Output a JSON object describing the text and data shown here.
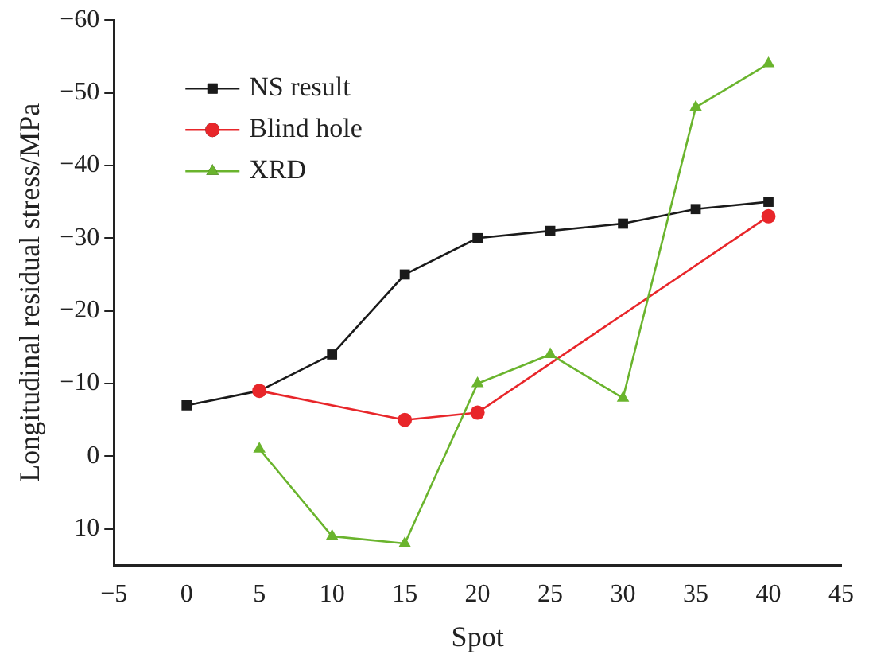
{
  "chart_data": {
    "type": "line",
    "xlabel": "Spot",
    "ylabel": "Longitudinal residual stress/MPa",
    "xlim": [
      -5,
      45
    ],
    "xticks": [
      {
        "value": -5,
        "label": "−5"
      },
      0,
      5,
      10,
      15,
      20,
      25,
      30,
      35,
      40,
      45
    ],
    "ylim": [
      15,
      -60
    ],
    "yticks": [
      {
        "value": -60,
        "label": "−60"
      },
      {
        "value": -50,
        "label": "−50"
      },
      {
        "value": -40,
        "label": "−40"
      },
      {
        "value": -30,
        "label": "−30"
      },
      {
        "value": -20,
        "label": "−20"
      },
      {
        "value": -10,
        "label": "−10"
      },
      0,
      10
    ],
    "grid": false,
    "legend": "top left",
    "line_style": "solid",
    "series": [
      {
        "name": "NS result",
        "color": "#1a1a1a",
        "marker": "square",
        "x": [
          0,
          5,
          10,
          15,
          20,
          25,
          30,
          35,
          40
        ],
        "values": [
          -7,
          -9,
          -14,
          -25,
          -30,
          -31,
          -32,
          -34,
          -35
        ]
      },
      {
        "name": "Blind hole",
        "color": "#e8262a",
        "marker": "circle",
        "x": [
          5,
          15,
          20,
          40
        ],
        "values": [
          -9,
          -5,
          -6,
          -33
        ]
      },
      {
        "name": "XRD",
        "color": "#6ab42d",
        "marker": "triangle",
        "x": [
          5,
          10,
          15,
          20,
          25,
          30,
          35,
          40
        ],
        "values": [
          -1,
          11,
          12,
          -10,
          -14,
          -8,
          -48,
          -54
        ]
      }
    ]
  }
}
